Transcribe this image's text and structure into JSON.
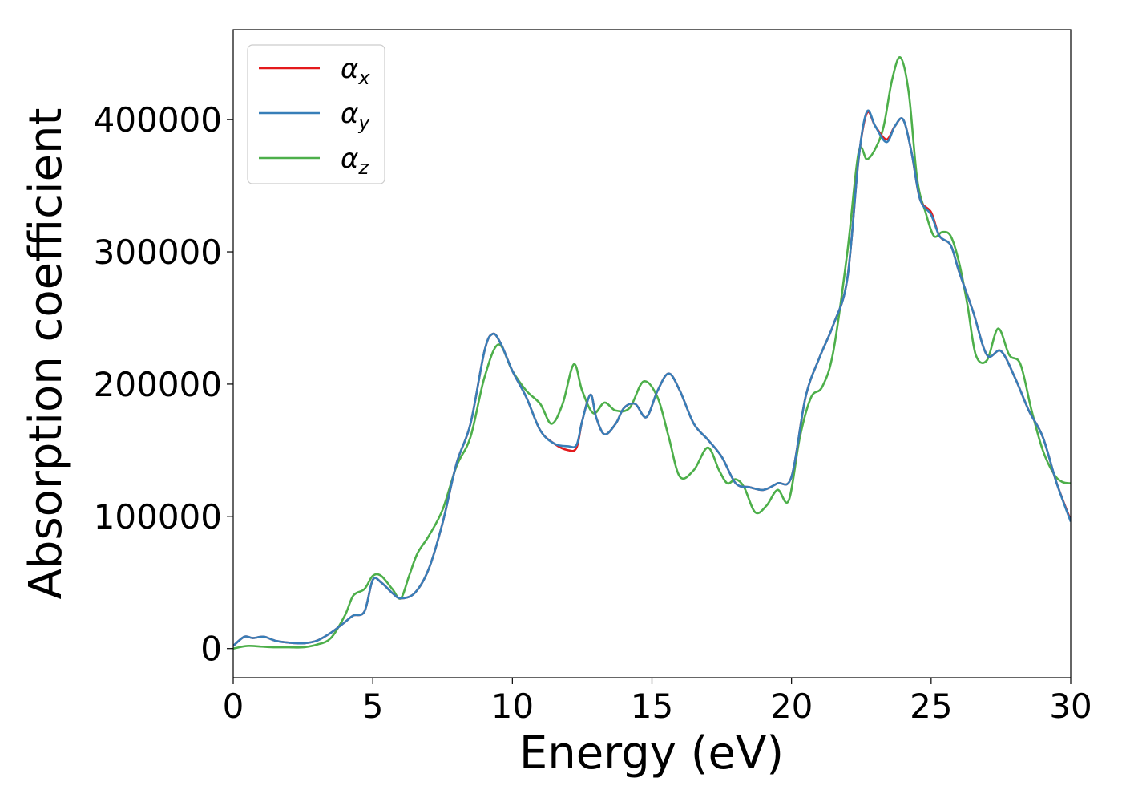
{
  "chart_data": {
    "type": "line",
    "title": "",
    "xlabel": "Energy (eV)",
    "ylabel": "Absorption coefficient",
    "xlim": [
      0,
      30
    ],
    "ylim": [
      -22000,
      468000
    ],
    "xticks": [
      0,
      5,
      10,
      15,
      20,
      25,
      30
    ],
    "xtick_labels": [
      "0",
      "5",
      "10",
      "15",
      "20",
      "25",
      "30"
    ],
    "yticks": [
      0,
      100000,
      200000,
      300000,
      400000
    ],
    "ytick_labels": [
      "0",
      "100000",
      "200000",
      "300000",
      "400000"
    ],
    "grid": false,
    "legend_position": "top-left",
    "series": [
      {
        "name": "α_x",
        "base": "α",
        "sub": "x",
        "color": "#e41a1c",
        "x": [
          0,
          0.4,
          0.7,
          1.1,
          1.5,
          2.0,
          2.5,
          3.0,
          3.5,
          4.0,
          4.3,
          4.7,
          5.0,
          5.3,
          5.7,
          6.0,
          6.5,
          7.0,
          7.5,
          8.0,
          8.5,
          9.0,
          9.3,
          9.6,
          10.0,
          10.5,
          11.0,
          11.5,
          12.0,
          12.3,
          12.5,
          12.8,
          13.0,
          13.3,
          13.7,
          14.0,
          14.4,
          14.8,
          15.2,
          15.6,
          16.0,
          16.5,
          17.0,
          17.5,
          18.0,
          18.5,
          19.0,
          19.5,
          20.0,
          20.5,
          21.0,
          21.5,
          22.0,
          22.4,
          22.7,
          23.0,
          23.4,
          23.7,
          24.0,
          24.3,
          24.6,
          25.0,
          25.3,
          25.7,
          26.0,
          26.5,
          27.0,
          27.5,
          28.0,
          28.5,
          29.0,
          29.5,
          30.0
        ],
        "y": [
          2000,
          9000,
          8000,
          9000,
          6000,
          4500,
          4000,
          6000,
          12000,
          20000,
          25000,
          28000,
          52000,
          50000,
          42000,
          38000,
          42000,
          60000,
          95000,
          140000,
          170000,
          225000,
          238000,
          230000,
          210000,
          190000,
          165000,
          155000,
          150000,
          152000,
          172000,
          192000,
          175000,
          162000,
          170000,
          182000,
          185000,
          175000,
          195000,
          208000,
          195000,
          170000,
          158000,
          145000,
          125000,
          122000,
          120000,
          125000,
          130000,
          190000,
          220000,
          245000,
          280000,
          370000,
          405000,
          395000,
          385000,
          395000,
          400000,
          375000,
          340000,
          330000,
          312000,
          305000,
          285000,
          255000,
          222000,
          225000,
          205000,
          180000,
          160000,
          125000,
          97000
        ]
      },
      {
        "name": "α_y",
        "base": "α",
        "sub": "y",
        "color": "#377eb8",
        "x": [
          0,
          0.4,
          0.7,
          1.1,
          1.5,
          2.0,
          2.5,
          3.0,
          3.5,
          4.0,
          4.3,
          4.7,
          5.0,
          5.3,
          5.7,
          6.0,
          6.5,
          7.0,
          7.5,
          8.0,
          8.5,
          9.0,
          9.3,
          9.6,
          10.0,
          10.5,
          11.0,
          11.5,
          12.0,
          12.3,
          12.5,
          12.8,
          13.0,
          13.3,
          13.7,
          14.0,
          14.4,
          14.8,
          15.2,
          15.6,
          16.0,
          16.5,
          17.0,
          17.5,
          18.0,
          18.5,
          19.0,
          19.5,
          20.0,
          20.5,
          21.0,
          21.5,
          22.0,
          22.4,
          22.7,
          23.0,
          23.4,
          23.7,
          24.0,
          24.3,
          24.6,
          25.0,
          25.3,
          25.7,
          26.0,
          26.5,
          27.0,
          27.5,
          28.0,
          28.5,
          29.0,
          29.5,
          30.0
        ],
        "y": [
          2000,
          9000,
          8000,
          9000,
          6000,
          4500,
          4000,
          6000,
          12000,
          20000,
          25000,
          28000,
          52000,
          50000,
          42000,
          38000,
          42000,
          60000,
          95000,
          140000,
          170000,
          225000,
          238000,
          230000,
          210000,
          190000,
          165000,
          155000,
          153000,
          154000,
          172000,
          192000,
          175000,
          162000,
          170000,
          182000,
          185000,
          175000,
          195000,
          208000,
          195000,
          170000,
          158000,
          145000,
          125000,
          122000,
          120000,
          125000,
          130000,
          190000,
          220000,
          245000,
          280000,
          370000,
          406000,
          395000,
          383000,
          395000,
          400000,
          375000,
          340000,
          328000,
          312000,
          305000,
          285000,
          255000,
          222000,
          225000,
          205000,
          180000,
          160000,
          125000,
          96000
        ]
      },
      {
        "name": "α_z",
        "base": "α",
        "sub": "z",
        "color": "#4daf4a",
        "x": [
          0,
          0.5,
          1.0,
          1.5,
          2.0,
          2.5,
          3.0,
          3.5,
          4.0,
          4.3,
          4.7,
          5.0,
          5.3,
          5.7,
          6.0,
          6.3,
          6.6,
          7.0,
          7.5,
          8.0,
          8.5,
          9.0,
          9.5,
          10.0,
          10.5,
          11.0,
          11.4,
          11.8,
          12.2,
          12.5,
          12.9,
          13.3,
          13.7,
          14.2,
          14.7,
          15.2,
          15.6,
          16.0,
          16.5,
          17.0,
          17.4,
          17.7,
          18.0,
          18.3,
          18.7,
          19.1,
          19.5,
          19.9,
          20.3,
          20.7,
          21.1,
          21.5,
          22.0,
          22.4,
          22.7,
          23.0,
          23.3,
          23.6,
          23.9,
          24.2,
          24.5,
          24.8,
          25.1,
          25.4,
          25.7,
          26.0,
          26.3,
          26.6,
          27.0,
          27.4,
          27.8,
          28.2,
          28.6,
          29.0,
          29.4,
          29.7,
          30.0
        ],
        "y": [
          0,
          2000,
          1500,
          1000,
          1000,
          1000,
          3000,
          8000,
          25000,
          40000,
          45000,
          55000,
          55000,
          45000,
          38000,
          55000,
          72000,
          85000,
          105000,
          138000,
          160000,
          205000,
          230000,
          210000,
          195000,
          185000,
          170000,
          185000,
          215000,
          195000,
          178000,
          186000,
          180000,
          182000,
          202000,
          190000,
          160000,
          130000,
          135000,
          152000,
          135000,
          125000,
          128000,
          122000,
          103000,
          108000,
          120000,
          112000,
          160000,
          190000,
          198000,
          225000,
          300000,
          375000,
          370000,
          378000,
          395000,
          430000,
          447000,
          420000,
          355000,
          330000,
          312000,
          315000,
          312000,
          292000,
          260000,
          222000,
          218000,
          242000,
          222000,
          215000,
          180000,
          150000,
          132000,
          126000,
          125000
        ]
      }
    ]
  }
}
